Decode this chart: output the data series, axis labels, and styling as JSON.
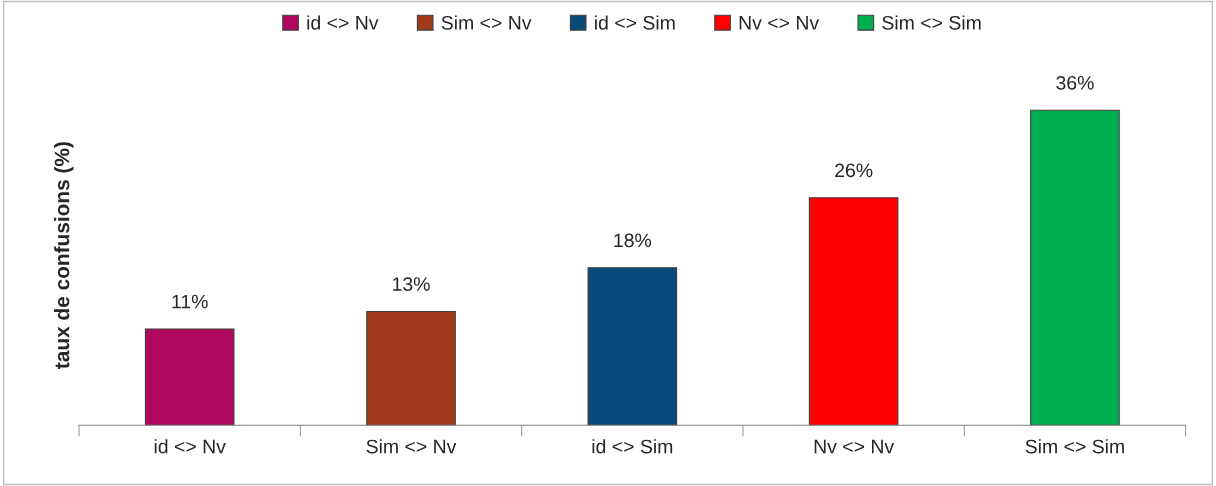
{
  "chart_data": {
    "type": "bar",
    "ylabel": "taux de confusions (%)",
    "categories": [
      "id <> Nv",
      "Sim <> Nv",
      "id <> Sim",
      "Nv <> Nv",
      "Sim <> Sim"
    ],
    "series": [
      {
        "name": "id <> Nv",
        "color": "#b0075f",
        "values": [
          11,
          null,
          null,
          null,
          null
        ],
        "value_labels": [
          "11%",
          null,
          null,
          null,
          null
        ]
      },
      {
        "name": "Sim <> Nv",
        "color": "#a03a1c",
        "values": [
          null,
          13,
          null,
          null,
          null
        ],
        "value_labels": [
          null,
          "13%",
          null,
          null,
          null
        ]
      },
      {
        "name": "id <> Sim",
        "color": "#0a4a7a",
        "values": [
          null,
          null,
          18,
          null,
          null
        ],
        "value_labels": [
          null,
          null,
          "18%",
          null,
          null
        ]
      },
      {
        "name": "Nv <> Nv",
        "color": "#ff0000",
        "values": [
          null,
          null,
          null,
          26,
          null
        ],
        "value_labels": [
          null,
          null,
          null,
          "26%",
          null
        ]
      },
      {
        "name": "Sim <> Sim",
        "color": "#00b050",
        "values": [
          null,
          null,
          null,
          null,
          36
        ],
        "value_labels": [
          null,
          null,
          null,
          null,
          "36%"
        ]
      }
    ],
    "legend": "top",
    "tick_labels": "x"
  }
}
